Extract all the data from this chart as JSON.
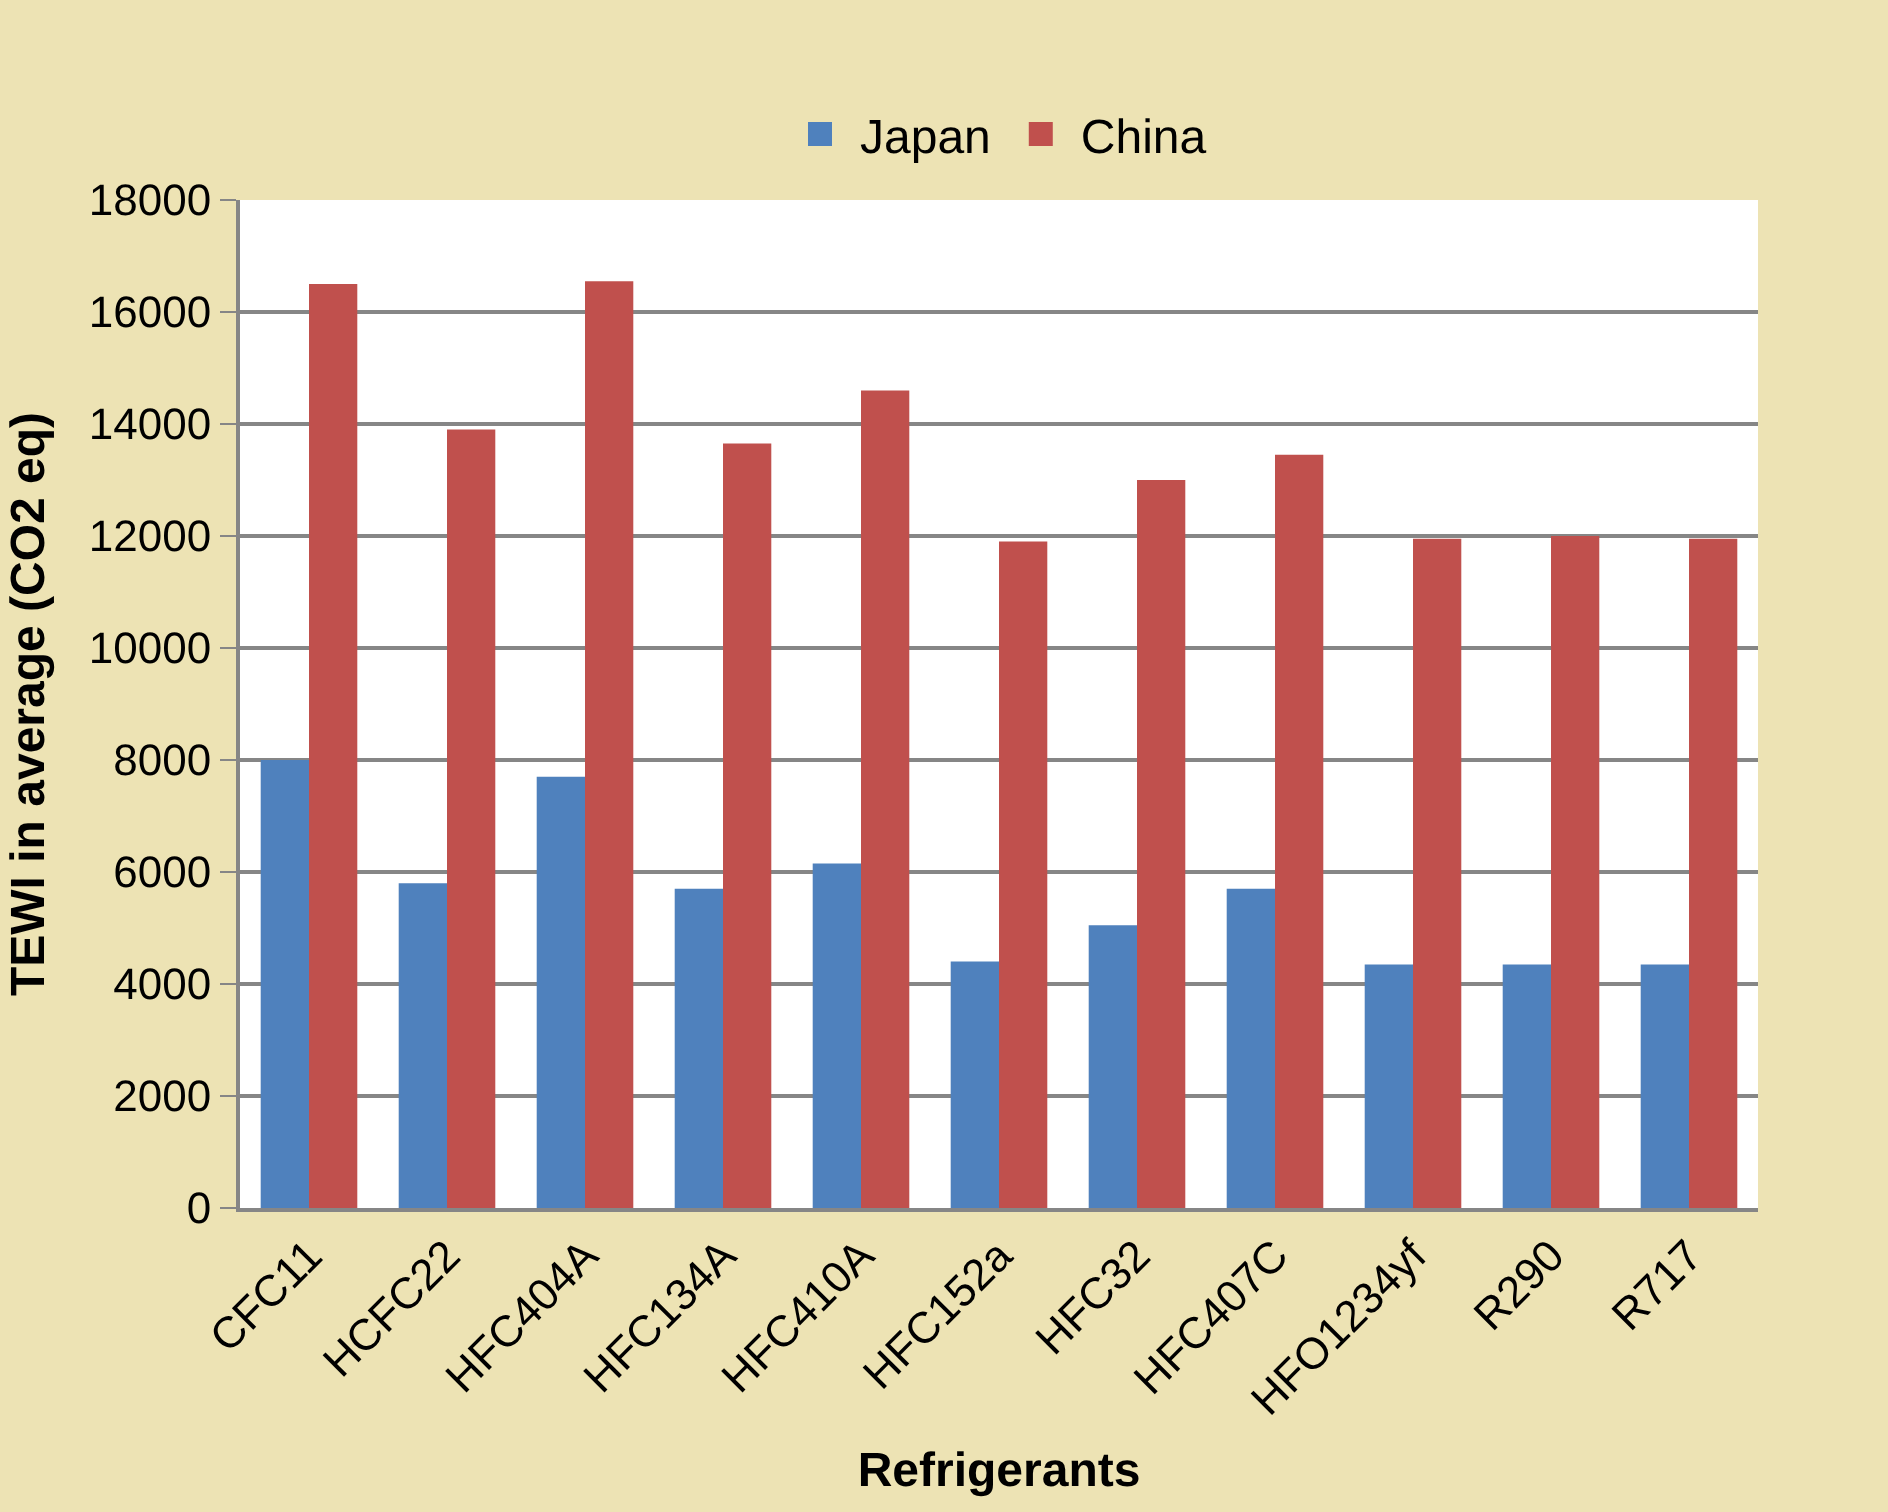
{
  "chart_data": {
    "type": "bar",
    "xlabel": "Refrigerants",
    "ylabel": "TEWI in average (CO2 eq)",
    "categories": [
      "CFC11",
      "HCFC22",
      "HFC404A",
      "HFC134A",
      "HFC410A",
      "HFC152a",
      "HFC32",
      "HFC407C",
      "HFO1234yf",
      "R290",
      "R717"
    ],
    "series": [
      {
        "name": "Japan",
        "color": "#4f81bd",
        "values": [
          8000,
          5800,
          7700,
          5700,
          6150,
          4400,
          5050,
          5700,
          4350,
          4350,
          4350
        ]
      },
      {
        "name": "China",
        "color": "#c0504d",
        "values": [
          16500,
          13900,
          16550,
          13650,
          14600,
          11900,
          13000,
          13450,
          11950,
          12000,
          11950
        ]
      }
    ],
    "ylim": [
      0,
      18000
    ],
    "yticks": [
      0,
      2000,
      4000,
      6000,
      8000,
      10000,
      12000,
      14000,
      16000,
      18000
    ],
    "grid": "y",
    "legend": "top"
  }
}
